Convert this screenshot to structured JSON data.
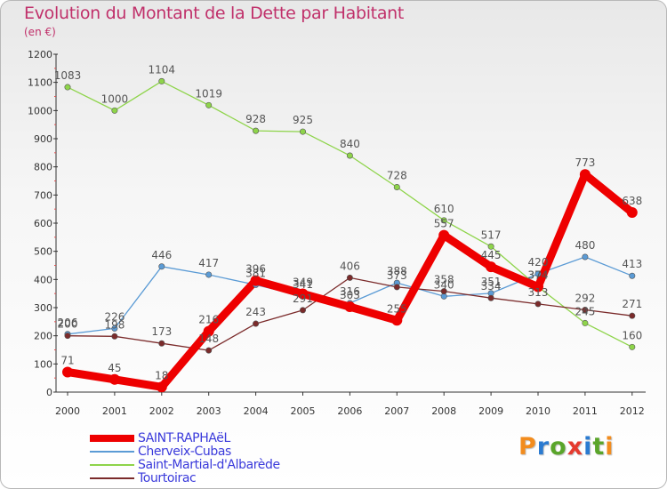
{
  "title": "Evolution du Montant de la Dette par Habitant",
  "subtitle": "(en €)",
  "logo_text": "Proxiti",
  "logo_colors": [
    "#f28c1e",
    "#2b7bd1",
    "#5aa52a",
    "#e53b2f",
    "#2b7bd1",
    "#5aa52a",
    "#f28c1e"
  ],
  "chart_data": {
    "type": "line",
    "x": [
      "2000",
      "2001",
      "2002",
      "2003",
      "2004",
      "2005",
      "2006",
      "2007",
      "2008",
      "2009",
      "2010",
      "2011",
      "2012"
    ],
    "ylim": [
      0,
      1200
    ],
    "yticks": [
      0,
      100,
      200,
      300,
      400,
      500,
      600,
      700,
      800,
      900,
      1000,
      1100,
      1200
    ],
    "grid": false,
    "legend_position": "bottom-left",
    "series": [
      {
        "name": "SAINT-RAPHAëL",
        "color": "#ee0000",
        "emphasis": true,
        "values": [
          71,
          45,
          18,
          216,
          396,
          349,
          303,
          255,
          557,
          445,
          374,
          773,
          638
        ]
      },
      {
        "name": "Cherveix-Cubas",
        "color": "#5b9bd5",
        "emphasis": false,
        "values": [
          206,
          226,
          446,
          417,
          381,
          341,
          316,
          388,
          340,
          351,
          420,
          480,
          413
        ]
      },
      {
        "name": "Saint-Martial-d'Albarède",
        "color": "#8ed44a",
        "emphasis": false,
        "values": [
          1083,
          1000,
          1104,
          1019,
          928,
          925,
          840,
          728,
          610,
          517,
          374,
          245,
          160
        ]
      },
      {
        "name": "Tourtoirac",
        "color": "#7b2b2b",
        "emphasis": false,
        "values": [
          200,
          198,
          173,
          148,
          243,
          291,
          406,
          373,
          358,
          334,
          313,
          292,
          271
        ]
      }
    ],
    "data_labels": [
      [
        "71",
        "45",
        "18",
        "216",
        "396",
        "349",
        "303",
        "255",
        "557",
        "445",
        "374",
        "773",
        "638"
      ],
      [
        "206",
        "226",
        "446",
        "417",
        "381",
        "341",
        "316",
        "388",
        "340",
        "351",
        "420",
        "480",
        "413"
      ],
      [
        "1083",
        "1000",
        "1104",
        "1019",
        "928",
        "925",
        "840",
        "728",
        "610",
        "517",
        "374",
        "245",
        "160"
      ],
      [
        "200",
        "198",
        "173",
        "148",
        "243",
        "291",
        "406",
        "373",
        "358",
        "334",
        "313",
        "292",
        "271"
      ]
    ]
  }
}
